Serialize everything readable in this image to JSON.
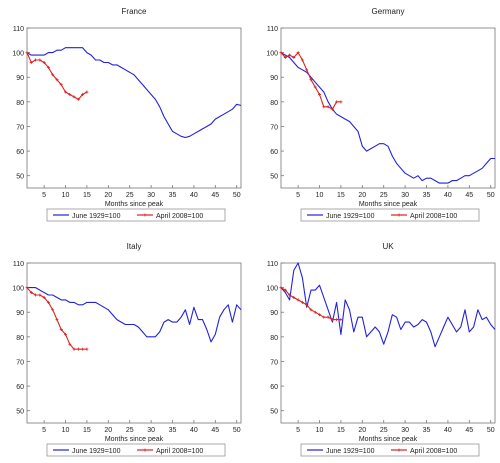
{
  "chart_data": [
    {
      "type": "line",
      "title": "France",
      "xlabel": "Months since peak",
      "ylabel": "",
      "xlim": [
        1,
        51
      ],
      "ylim": [
        45,
        110
      ],
      "xticks": [
        5,
        10,
        15,
        20,
        25,
        30,
        35,
        40,
        45,
        50
      ],
      "yticks": [
        50,
        60,
        70,
        80,
        90,
        100,
        110
      ],
      "legend_position": "bottom",
      "series": [
        {
          "name": "June 1929=100",
          "color": "#2222dd",
          "x": [
            1,
            2,
            3,
            4,
            5,
            6,
            7,
            8,
            9,
            10,
            11,
            12,
            13,
            14,
            15,
            16,
            17,
            18,
            19,
            20,
            21,
            22,
            23,
            24,
            25,
            26,
            27,
            28,
            29,
            30,
            31,
            32,
            33,
            34,
            35,
            36,
            37,
            38,
            39,
            40,
            41,
            42,
            43,
            44,
            45,
            46,
            47,
            48,
            49,
            50,
            51
          ],
          "y": [
            100,
            99,
            99,
            99,
            99,
            100,
            100,
            101,
            101,
            102,
            102,
            102,
            102,
            102,
            100,
            99,
            97,
            97,
            96,
            96,
            95,
            95,
            94,
            93,
            92,
            91,
            89,
            87,
            85,
            83,
            81,
            78,
            74,
            71,
            68,
            67,
            66,
            65.5,
            66,
            67,
            68,
            69,
            70,
            71,
            73,
            74,
            75,
            76,
            77,
            79,
            78.5
          ]
        },
        {
          "name": "April 2008=100",
          "color": "#dd2222",
          "x": [
            1,
            2,
            3,
            4,
            5,
            6,
            7,
            8,
            9,
            10,
            11,
            12,
            13,
            14,
            15
          ],
          "y": [
            100,
            96,
            97,
            97,
            96,
            94,
            91,
            89,
            87,
            84,
            83,
            82,
            81,
            83,
            84
          ]
        }
      ]
    },
    {
      "type": "line",
      "title": "Germany",
      "xlabel": "Months since peak",
      "ylabel": "",
      "xlim": [
        1,
        51
      ],
      "ylim": [
        45,
        110
      ],
      "xticks": [
        5,
        10,
        15,
        20,
        25,
        30,
        35,
        40,
        45,
        50
      ],
      "yticks": [
        50,
        60,
        70,
        80,
        90,
        100,
        110
      ],
      "legend_position": "bottom",
      "series": [
        {
          "name": "June 1929=100",
          "color": "#2222dd",
          "x": [
            1,
            2,
            3,
            4,
            5,
            6,
            7,
            8,
            9,
            10,
            11,
            12,
            13,
            14,
            15,
            16,
            17,
            18,
            19,
            20,
            21,
            22,
            23,
            24,
            25,
            26,
            27,
            28,
            29,
            30,
            31,
            32,
            33,
            34,
            35,
            36,
            37,
            38,
            39,
            40,
            41,
            42,
            43,
            44,
            45,
            46,
            47,
            48,
            49,
            50,
            51
          ],
          "y": [
            100,
            99,
            98,
            96,
            94,
            93,
            92,
            90,
            88,
            86,
            84,
            80,
            77,
            75,
            74,
            73,
            72,
            70,
            68,
            62,
            60,
            61,
            62,
            63,
            63,
            62,
            58,
            55,
            53,
            51,
            50,
            49,
            50,
            48,
            49,
            49,
            48,
            47,
            47,
            47,
            48,
            48,
            49,
            50,
            50,
            51,
            52,
            53,
            55,
            57,
            57
          ]
        },
        {
          "name": "April 2008=100",
          "color": "#dd2222",
          "x": [
            1,
            2,
            3,
            4,
            5,
            6,
            7,
            8,
            9,
            10,
            11,
            12,
            13,
            14,
            15
          ],
          "y": [
            100,
            98,
            99,
            98,
            100,
            97,
            93,
            89,
            86,
            83,
            78,
            78,
            77,
            80,
            80
          ]
        }
      ]
    },
    {
      "type": "line",
      "title": "Italy",
      "xlabel": "Months since peak",
      "ylabel": "",
      "xlim": [
        1,
        51
      ],
      "ylim": [
        45,
        110
      ],
      "xticks": [
        5,
        10,
        15,
        20,
        25,
        30,
        35,
        40,
        45,
        50
      ],
      "yticks": [
        50,
        60,
        70,
        80,
        90,
        100,
        110
      ],
      "legend_position": "bottom",
      "series": [
        {
          "name": "June 1929=100",
          "color": "#2222dd",
          "x": [
            1,
            2,
            3,
            4,
            5,
            6,
            7,
            8,
            9,
            10,
            11,
            12,
            13,
            14,
            15,
            16,
            17,
            18,
            19,
            20,
            21,
            22,
            23,
            24,
            25,
            26,
            27,
            28,
            29,
            30,
            31,
            32,
            33,
            34,
            35,
            36,
            37,
            38,
            39,
            40,
            41,
            42,
            43,
            44,
            45,
            46,
            47,
            48,
            49,
            50,
            51
          ],
          "y": [
            100,
            100,
            100,
            99,
            98,
            97,
            97,
            96,
            95,
            95,
            94,
            94,
            93,
            93,
            94,
            94,
            94,
            93,
            92,
            91,
            89,
            87,
            86,
            85,
            85,
            85,
            84,
            82,
            80,
            80,
            80,
            82,
            86,
            87,
            86,
            86,
            88,
            91,
            85,
            92,
            87,
            87,
            83,
            78,
            81,
            88,
            91,
            93,
            86,
            93,
            91
          ]
        },
        {
          "name": "April 2008=100",
          "color": "#dd2222",
          "x": [
            1,
            2,
            3,
            4,
            5,
            6,
            7,
            8,
            9,
            10,
            11,
            12,
            13,
            14,
            15
          ],
          "y": [
            100,
            98,
            97,
            97,
            96,
            94,
            91,
            87,
            83,
            81,
            77,
            75,
            75,
            75,
            75
          ]
        }
      ]
    },
    {
      "type": "line",
      "title": "UK",
      "xlabel": "Months since peak",
      "ylabel": "",
      "xlim": [
        1,
        51
      ],
      "ylim": [
        45,
        110
      ],
      "xticks": [
        5,
        10,
        15,
        20,
        25,
        30,
        35,
        40,
        45,
        50
      ],
      "yticks": [
        50,
        60,
        70,
        80,
        90,
        100,
        110
      ],
      "legend_position": "bottom",
      "series": [
        {
          "name": "June 1929=100",
          "color": "#2222dd",
          "x": [
            1,
            2,
            3,
            4,
            5,
            6,
            7,
            8,
            9,
            10,
            11,
            12,
            13,
            14,
            15,
            16,
            17,
            18,
            19,
            20,
            21,
            22,
            23,
            24,
            25,
            26,
            27,
            28,
            29,
            30,
            31,
            32,
            33,
            34,
            35,
            36,
            37,
            38,
            39,
            40,
            41,
            42,
            43,
            44,
            45,
            46,
            47,
            48,
            49,
            50,
            51
          ],
          "y": [
            100,
            98,
            95,
            107,
            110,
            104,
            92,
            99,
            99,
            101,
            96,
            91,
            86,
            94,
            81,
            95,
            91,
            82,
            88,
            88,
            80,
            82,
            84,
            82,
            77,
            82,
            89,
            88,
            83,
            86,
            86,
            84,
            85,
            87,
            86,
            82,
            76,
            80,
            84,
            88,
            85,
            82,
            84,
            91,
            82,
            84,
            91,
            87,
            88,
            85,
            83
          ]
        },
        {
          "name": "April 2008=100",
          "color": "#dd2222",
          "x": [
            1,
            2,
            3,
            4,
            5,
            6,
            7,
            8,
            9,
            10,
            11,
            12,
            13,
            14,
            15
          ],
          "y": [
            100,
            99,
            97,
            96,
            95,
            94,
            93,
            91,
            90,
            89,
            88,
            88,
            87,
            87,
            87
          ]
        }
      ]
    }
  ]
}
